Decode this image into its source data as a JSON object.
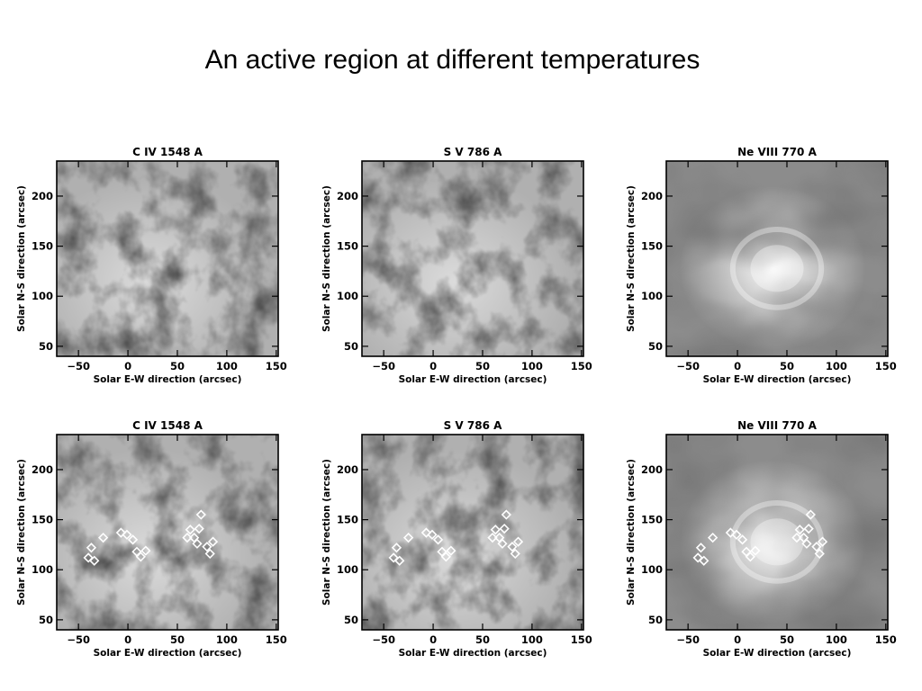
{
  "slide": {
    "title": "An active region at different temperatures"
  },
  "figure": {
    "panels": [
      {
        "title": "C IV 1548 A",
        "image": "solar-intensity-map",
        "markers": false
      },
      {
        "title": "S V 786 A",
        "image": "solar-intensity-map",
        "markers": false
      },
      {
        "title": "Ne VIII 770 A",
        "image": "solar-intensity-map",
        "markers": false
      },
      {
        "title": "C IV 1548 A",
        "image": "solar-intensity-map",
        "markers": true
      },
      {
        "title": "S V 786 A",
        "image": "solar-intensity-map",
        "markers": true
      },
      {
        "title": "Ne VIII 770 A",
        "image": "solar-intensity-map",
        "markers": true
      }
    ],
    "xlabel": "Solar E-W direction (arcsec)",
    "ylabel": "Solar N-S direction (arcsec)",
    "x_ticks": [
      {
        "label": "−50",
        "value": -50
      },
      {
        "label": "0",
        "value": 0
      },
      {
        "label": "50",
        "value": 50
      },
      {
        "label": "100",
        "value": 100
      },
      {
        "label": "150",
        "value": 150
      }
    ],
    "y_ticks": [
      {
        "label": "50",
        "value": 50
      },
      {
        "label": "100",
        "value": 100
      },
      {
        "label": "150",
        "value": 150
      },
      {
        "label": "200",
        "value": 200
      }
    ],
    "xlim": [
      -72,
      152
    ],
    "ylim": [
      40,
      235
    ],
    "marker_points": [
      [
        -40,
        112
      ],
      [
        -37,
        122
      ],
      [
        -34,
        109
      ],
      [
        -25,
        132
      ],
      [
        -7,
        137
      ],
      [
        -1,
        135
      ],
      [
        5,
        130
      ],
      [
        9,
        118
      ],
      [
        13,
        113
      ],
      [
        18,
        119
      ],
      [
        60,
        132
      ],
      [
        63,
        140
      ],
      [
        67,
        132
      ],
      [
        70,
        126
      ],
      [
        72,
        141
      ],
      [
        74,
        155
      ],
      [
        80,
        123
      ],
      [
        83,
        116
      ],
      [
        86,
        128
      ]
    ],
    "marker_color": "#ffffff"
  }
}
